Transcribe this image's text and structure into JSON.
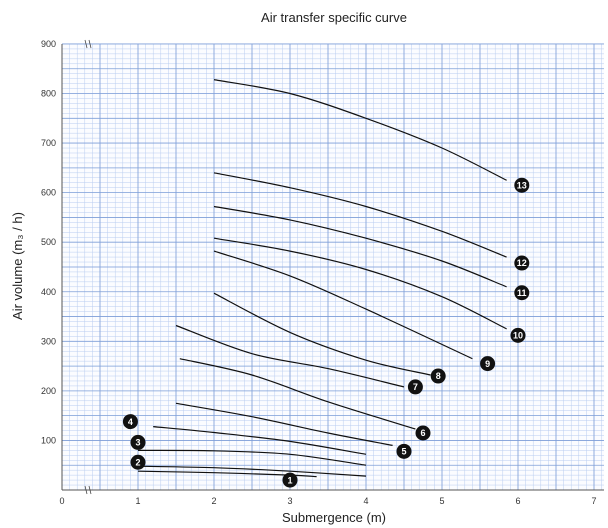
{
  "chart_data": {
    "type": "line",
    "title": "Air transfer specific curve",
    "xlabel": "Submergence (m)",
    "ylabel": "Air volume (m₃ / h)",
    "xlim": [
      0,
      7.5
    ],
    "ylim": [
      0,
      900
    ],
    "xticks": [
      "0",
      "1",
      "2",
      "3",
      "4",
      "5",
      "6",
      "7"
    ],
    "yticks": [
      "0",
      "100",
      "200",
      "300",
      "400",
      "500",
      "600",
      "700",
      "800",
      "900"
    ],
    "grid": true,
    "series": [
      {
        "name": "1",
        "x": [
          1.0,
          2.0,
          3.0,
          3.35
        ],
        "y": [
          38,
          35,
          30,
          27
        ],
        "marker": [
          3.0,
          20
        ]
      },
      {
        "name": "2",
        "x": [
          1.0,
          2.0,
          3.0,
          4.0
        ],
        "y": [
          48,
          45,
          38,
          28
        ],
        "marker": [
          1.0,
          56
        ]
      },
      {
        "name": "3",
        "x": [
          1.0,
          2.0,
          3.0,
          4.0
        ],
        "y": [
          80,
          79,
          72,
          50
        ],
        "marker": [
          1.0,
          96
        ]
      },
      {
        "name": "4",
        "x": [
          1.2,
          2.0,
          3.0,
          4.0
        ],
        "y": [
          128,
          116,
          98,
          72
        ],
        "marker": [
          0.9,
          138
        ]
      },
      {
        "name": "5",
        "x": [
          1.5,
          2.5,
          3.5,
          4.35
        ],
        "y": [
          175,
          148,
          115,
          90
        ],
        "marker": [
          4.5,
          78
        ]
      },
      {
        "name": "6",
        "x": [
          1.55,
          2.5,
          3.5,
          4.65
        ],
        "y": [
          265,
          232,
          178,
          123
        ],
        "marker": [
          4.75,
          115
        ]
      },
      {
        "name": "7",
        "x": [
          1.5,
          2.5,
          3.5,
          4.5
        ],
        "y": [
          332,
          275,
          245,
          208
        ],
        "marker": [
          4.65,
          208
        ]
      },
      {
        "name": "8",
        "x": [
          2.0,
          3.0,
          4.0,
          4.85
        ],
        "y": [
          397,
          318,
          262,
          232
        ],
        "marker": [
          4.95,
          230
        ]
      },
      {
        "name": "9",
        "x": [
          2.0,
          3.0,
          4.0,
          5.4
        ],
        "y": [
          482,
          432,
          365,
          265
        ],
        "marker": [
          5.6,
          255
        ]
      },
      {
        "name": "10",
        "x": [
          2.0,
          3.0,
          4.0,
          5.0,
          5.85
        ],
        "y": [
          508,
          482,
          445,
          390,
          325
        ],
        "marker": [
          6.0,
          312
        ]
      },
      {
        "name": "11",
        "x": [
          2.0,
          3.0,
          4.0,
          5.0,
          5.85
        ],
        "y": [
          572,
          545,
          508,
          462,
          410
        ],
        "marker": [
          6.05,
          398
        ]
      },
      {
        "name": "12",
        "x": [
          2.0,
          3.0,
          4.0,
          5.0,
          5.85
        ],
        "y": [
          640,
          610,
          572,
          522,
          470
        ],
        "marker": [
          6.05,
          458
        ]
      },
      {
        "name": "13",
        "x": [
          2.0,
          3.0,
          4.0,
          5.0,
          5.85
        ],
        "y": [
          828,
          800,
          750,
          690,
          625
        ],
        "marker": [
          6.05,
          615
        ]
      }
    ]
  }
}
